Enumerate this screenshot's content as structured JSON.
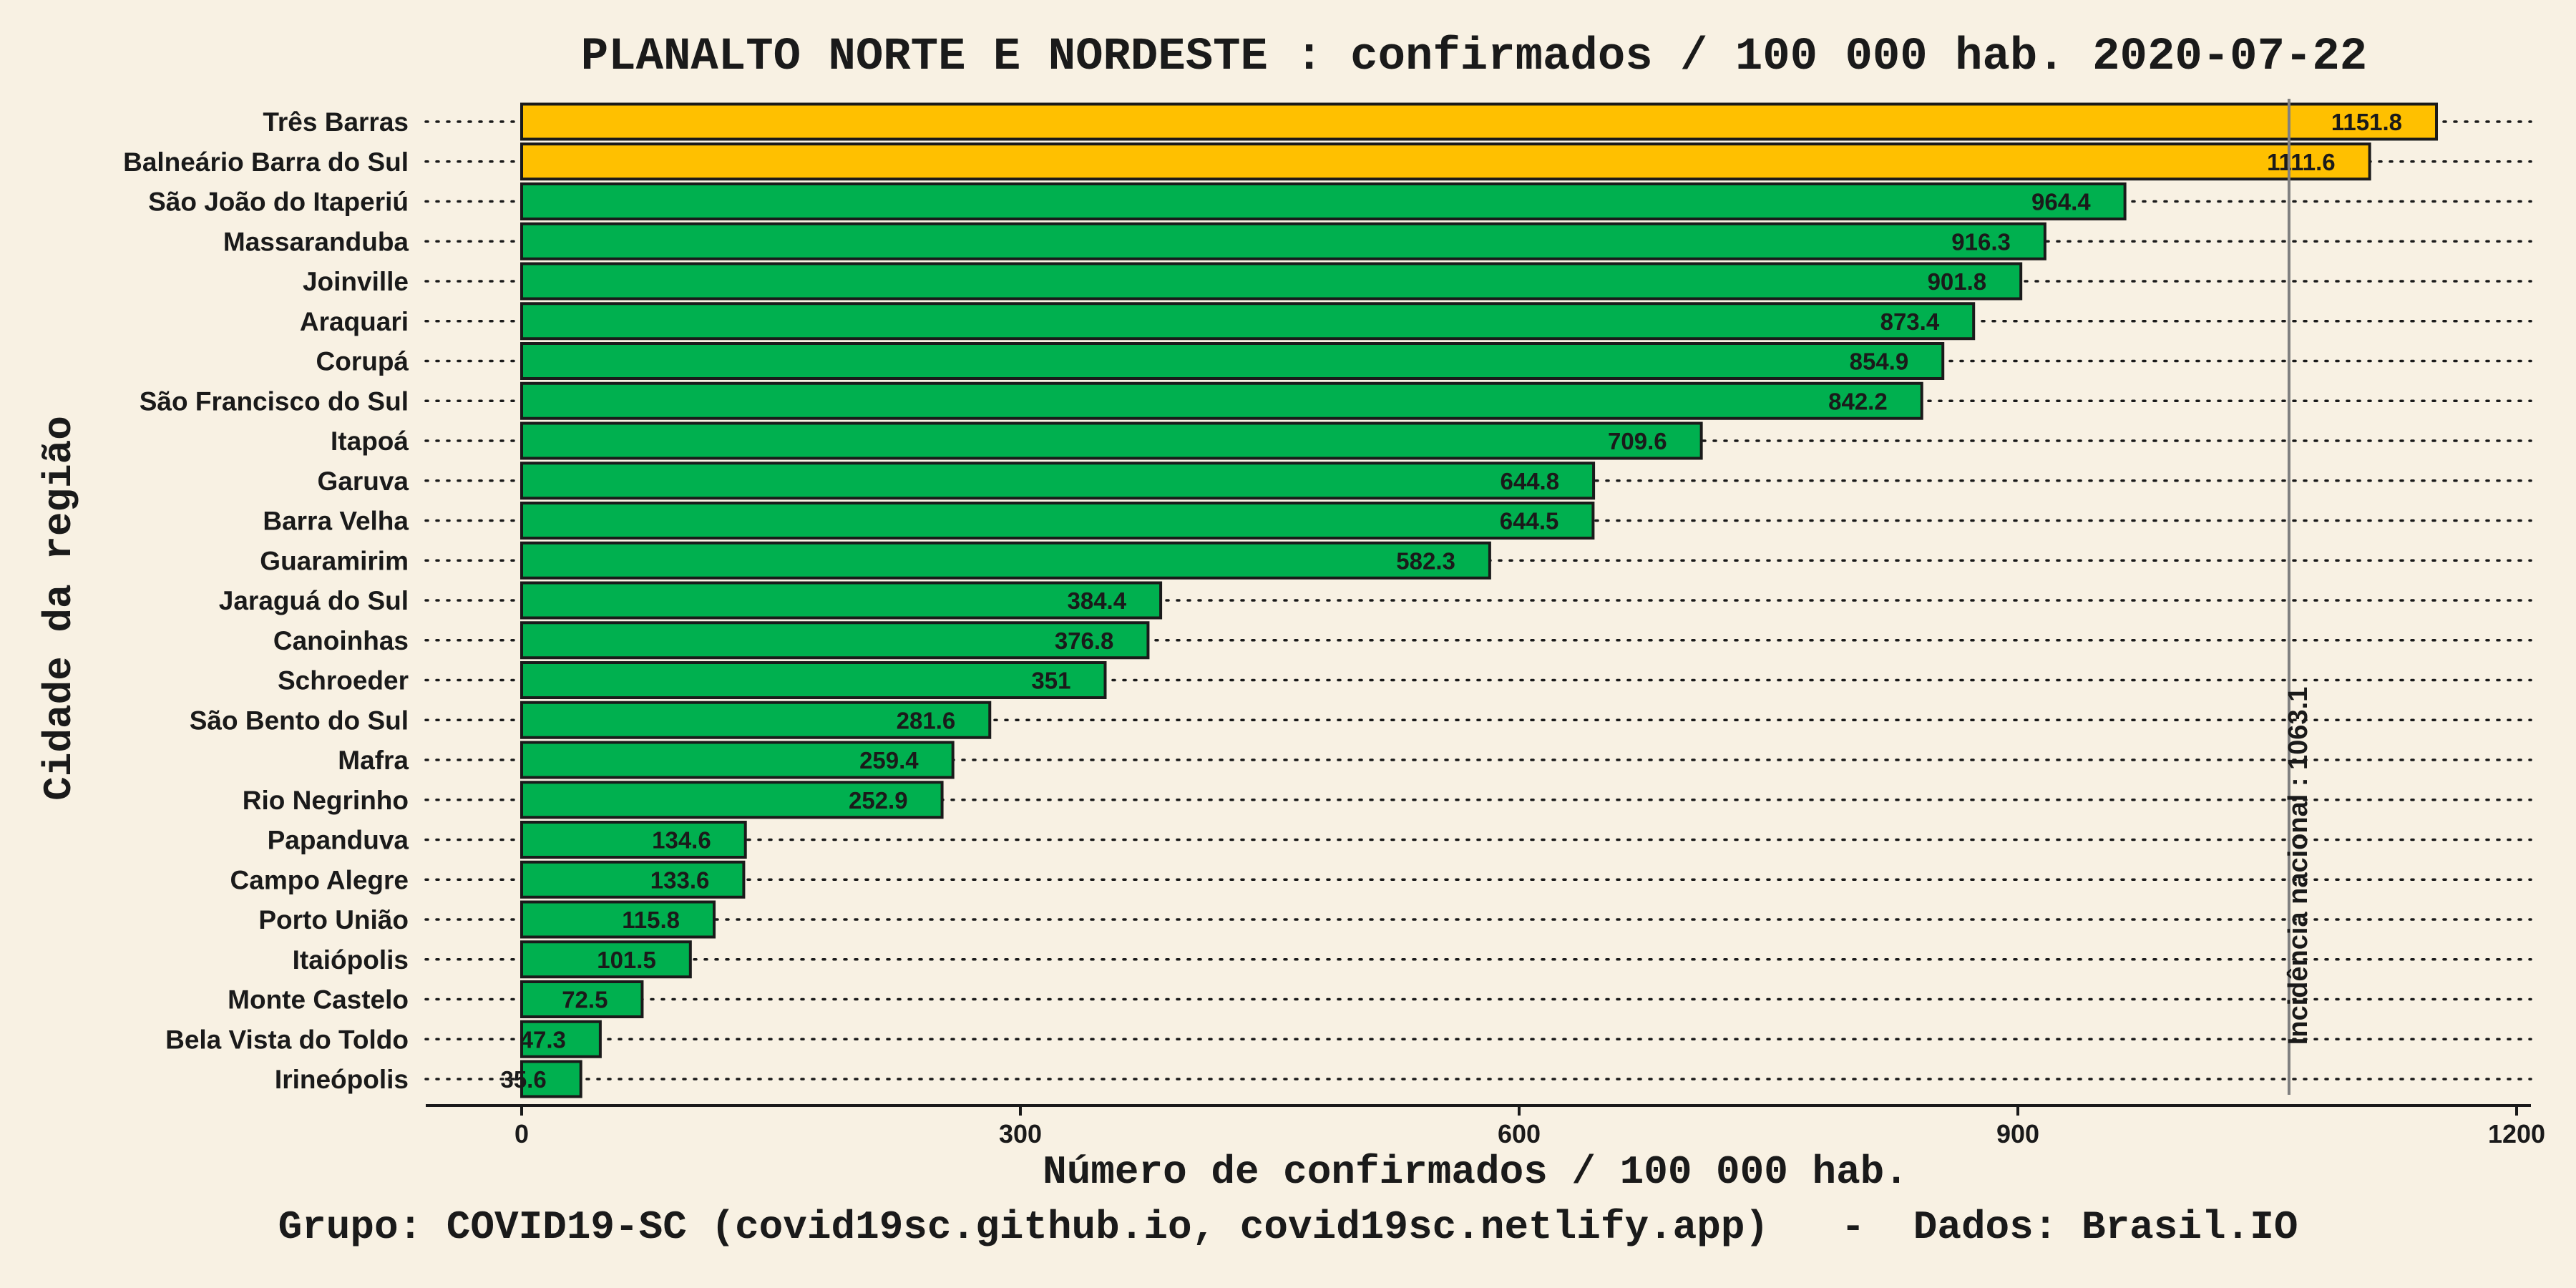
{
  "chart_data": {
    "type": "bar",
    "orientation": "horizontal",
    "title": "PLANALTO NORTE E NORDESTE : confirmados / 100 000 hab. 2020-07-22",
    "xlabel": "Número de confirmados / 100 000 hab.",
    "ylabel": "Cidade da região",
    "caption": "Grupo: COVID19-SC (covid19sc.github.io, covid19sc.netlify.app)   -  Dados: Brasil.IO",
    "xlim": [
      0,
      1200
    ],
    "xticks": [
      0,
      300,
      600,
      900,
      1200
    ],
    "xtick_labels": [
      "0",
      "300",
      "600",
      "900",
      "1200"
    ],
    "grid": "dotted horizontal",
    "reference_line": {
      "value": 1063.1,
      "label": "Incidência nacional : 1063.1"
    },
    "colors": {
      "above_reference": "#ffc000",
      "below_reference": "#00b04f",
      "background": "#f8f1e3",
      "reference_line": "#808080"
    },
    "categories": [
      "Três Barras",
      "Balneário Barra do Sul",
      "São João do Itaperiú",
      "Massaranduba",
      "Joinville",
      "Araquari",
      "Corupá",
      "São Francisco do Sul",
      "Itapoá",
      "Garuva",
      "Barra Velha",
      "Guaramirim",
      "Jaraguá do Sul",
      "Canoinhas",
      "Schroeder",
      "São Bento do Sul",
      "Mafra",
      "Rio Negrinho",
      "Papanduva",
      "Campo Alegre",
      "Porto União",
      "Itaiópolis",
      "Monte Castelo",
      "Bela Vista do Toldo",
      "Irineópolis"
    ],
    "values": [
      1151.8,
      1111.6,
      964.4,
      916.3,
      901.8,
      873.4,
      854.9,
      842.2,
      709.6,
      644.8,
      644.5,
      582.3,
      384.4,
      376.8,
      351,
      281.6,
      259.4,
      252.9,
      134.6,
      133.6,
      115.8,
      101.5,
      72.5,
      47.3,
      35.6
    ],
    "value_labels": [
      "1151.8",
      "1111.6",
      "964.4",
      "916.3",
      "901.8",
      "873.4",
      "854.9",
      "842.2",
      "709.6",
      "644.8",
      "644.5",
      "582.3",
      "384.4",
      "376.8",
      "351",
      "281.6",
      "259.4",
      "252.9",
      "134.6",
      "133.6",
      "115.8",
      "101.5",
      "72.5",
      "47.3",
      "35.6"
    ]
  }
}
